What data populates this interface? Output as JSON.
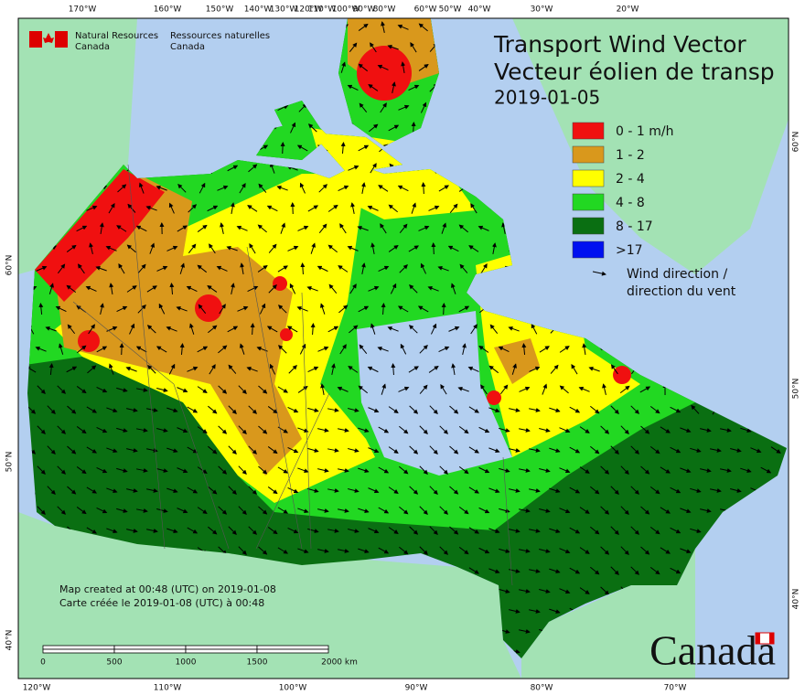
{
  "header": {
    "agency_en": [
      "Natural Resources",
      "Canada"
    ],
    "agency_fr": [
      "Ressources naturelles",
      "Canada"
    ]
  },
  "title": {
    "line1": "Transport Wind Vector",
    "line2": "Vecteur éolien de transp",
    "date": "2019-01-05"
  },
  "legend": {
    "classes": [
      {
        "label": "0 - 1 m/h",
        "color": "#f01010"
      },
      {
        "label": "1 - 2",
        "color": "#d9981c"
      },
      {
        "label": "2 - 4",
        "color": "#ffff00"
      },
      {
        "label": "4 - 8",
        "color": "#22d822"
      },
      {
        "label": "8 - 17",
        "color": "#0a6f12"
      },
      {
        "label": ">17",
        "color": "#0010f0"
      }
    ],
    "wind": [
      "Wind direction /",
      "direction du vent"
    ]
  },
  "axes": {
    "top": [
      "170°W",
      "160°W",
      "150°W",
      "140°W",
      "130°W",
      "120°W",
      "110°W",
      "100°W",
      "90°W",
      "80°W",
      "60°W",
      "50°W",
      "40°W",
      "30°W",
      "20°W"
    ],
    "bottom": [
      "120°W",
      "110°W",
      "100°W",
      "90°W",
      "80°W",
      "70°W"
    ],
    "left": [
      "60°N",
      "50°N",
      "40°N"
    ],
    "right": [
      "60°N",
      "50°N",
      "40°N"
    ]
  },
  "footer": {
    "created_en": "Map created at 00:48 (UTC) on 2019-01-08",
    "created_fr": "Carte créée le 2019-01-08 (UTC) à 00:48"
  },
  "scale_bar": [
    "0",
    "500",
    "1000",
    "1500",
    "2000 km"
  ],
  "wordmark": "Canada"
}
